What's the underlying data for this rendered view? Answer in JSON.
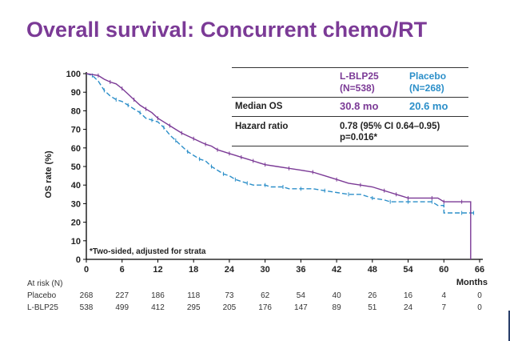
{
  "slide": {
    "title": "Overall survival: Concurrent chemo/RT",
    "footnote": "*Two-sided, adjusted for strata"
  },
  "chart_data": {
    "type": "line",
    "title": "",
    "xlabel": "Months",
    "ylabel": "OS rate (%)",
    "xlim": [
      0,
      66
    ],
    "ylim": [
      0,
      100
    ],
    "x_ticks": [
      0,
      6,
      12,
      18,
      24,
      30,
      36,
      42,
      48,
      54,
      60,
      66
    ],
    "y_ticks": [
      0,
      10,
      20,
      30,
      40,
      50,
      60,
      70,
      80,
      90,
      100
    ],
    "series": [
      {
        "name": "L-BLP25",
        "color": "#7b3a96",
        "style": "solid",
        "points": [
          [
            0,
            100
          ],
          [
            2,
            99
          ],
          [
            3,
            97
          ],
          [
            4,
            95.5
          ],
          [
            5,
            94.5
          ],
          [
            6,
            92
          ],
          [
            7,
            89
          ],
          [
            8,
            86
          ],
          [
            9,
            83
          ],
          [
            10,
            81
          ],
          [
            11,
            79
          ],
          [
            12,
            76
          ],
          [
            13,
            74
          ],
          [
            14,
            72
          ],
          [
            15,
            70
          ],
          [
            16,
            68
          ],
          [
            17,
            66.5
          ],
          [
            18,
            65
          ],
          [
            19,
            63.5
          ],
          [
            20,
            62
          ],
          [
            21,
            61
          ],
          [
            22,
            59
          ],
          [
            23,
            58
          ],
          [
            24,
            57
          ],
          [
            25,
            56
          ],
          [
            26,
            55
          ],
          [
            27,
            54
          ],
          [
            28,
            53
          ],
          [
            29,
            52
          ],
          [
            30,
            51
          ],
          [
            32,
            50
          ],
          [
            34,
            49
          ],
          [
            36,
            48
          ],
          [
            38,
            47
          ],
          [
            40,
            45
          ],
          [
            42,
            43
          ],
          [
            44,
            41
          ],
          [
            46,
            40
          ],
          [
            48,
            39
          ],
          [
            50,
            37
          ],
          [
            51,
            36
          ],
          [
            52,
            35
          ],
          [
            53,
            34
          ],
          [
            54,
            33
          ],
          [
            56,
            33
          ],
          [
            58,
            33
          ],
          [
            59,
            33
          ],
          [
            60,
            31
          ],
          [
            62,
            31
          ],
          [
            63,
            31
          ],
          [
            64.5,
            31
          ],
          [
            64.5,
            0
          ]
        ]
      },
      {
        "name": "Placebo",
        "color": "#2c8fc9",
        "style": "dashed",
        "points": [
          [
            0,
            100
          ],
          [
            1,
            99
          ],
          [
            2,
            96
          ],
          [
            3,
            91
          ],
          [
            4,
            88
          ],
          [
            5,
            86
          ],
          [
            6,
            85
          ],
          [
            7,
            83
          ],
          [
            8,
            81
          ],
          [
            9,
            79
          ],
          [
            10,
            76
          ],
          [
            11,
            75
          ],
          [
            12,
            74
          ],
          [
            13,
            71
          ],
          [
            14,
            67
          ],
          [
            15,
            64
          ],
          [
            16,
            61
          ],
          [
            17,
            58
          ],
          [
            18,
            56
          ],
          [
            19,
            54
          ],
          [
            20,
            53
          ],
          [
            21,
            50
          ],
          [
            22,
            48
          ],
          [
            23,
            46
          ],
          [
            24,
            45
          ],
          [
            25,
            43
          ],
          [
            26,
            42
          ],
          [
            27,
            41
          ],
          [
            28,
            40
          ],
          [
            30,
            40
          ],
          [
            31,
            39
          ],
          [
            33,
            39
          ],
          [
            34,
            38
          ],
          [
            36,
            38
          ],
          [
            38,
            38
          ],
          [
            40,
            37
          ],
          [
            42,
            36
          ],
          [
            44,
            35
          ],
          [
            46,
            35
          ],
          [
            48,
            33
          ],
          [
            50,
            32
          ],
          [
            51,
            31
          ],
          [
            52,
            31
          ],
          [
            54,
            31
          ],
          [
            56,
            31
          ],
          [
            58,
            31
          ],
          [
            59,
            29
          ],
          [
            60,
            29
          ],
          [
            60,
            25
          ],
          [
            63,
            25
          ],
          [
            64,
            25
          ],
          [
            65,
            25
          ]
        ]
      }
    ],
    "at_risk": {
      "label": "At risk (N)",
      "times": [
        "0",
        "6",
        "12",
        "18",
        "24",
        "30",
        "36",
        "42",
        "48",
        "54",
        "60",
        "66"
      ],
      "rows": [
        {
          "name": "Placebo",
          "values": [
            "268",
            "227",
            "186",
            "118",
            "73",
            "62",
            "54",
            "40",
            "26",
            "16",
            "4",
            "0"
          ]
        },
        {
          "name": "L-BLP25",
          "values": [
            "538",
            "499",
            "412",
            "295",
            "205",
            "176",
            "147",
            "89",
            "51",
            "24",
            "7",
            "0"
          ]
        }
      ]
    }
  },
  "summary_table": {
    "lblp_header_line1": "L-BLP25",
    "lblp_header_line2": "(N=538)",
    "placebo_header_line1": "Placebo",
    "placebo_header_line2": "(N=268)",
    "median_label": "Median OS",
    "median_lblp": "30.8 mo",
    "median_placebo": "20.6 mo",
    "hr_label": "Hazard ratio",
    "hr_value_line1": "0.78 (95% CI 0.64–0.95)",
    "hr_value_line2": "p=0.016*"
  },
  "colors": {
    "title": "#7b3a96",
    "lblp": "#7b3a96",
    "placebo": "#2c8fc9"
  }
}
